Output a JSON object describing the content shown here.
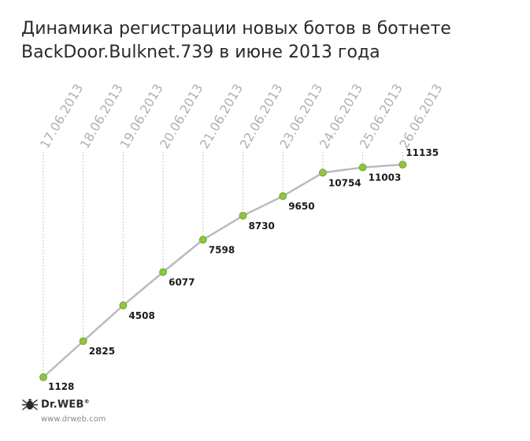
{
  "title_lines": [
    "Динамика регистрации новых ботов в ботнете",
    "BackDoor.Bulknet.739 в июне 2013 года"
  ],
  "chart_data": {
    "type": "line",
    "title": "Динамика регистрации новых ботов в ботнете BackDoor.Bulknet.739 в июне 2013 года",
    "categories": [
      "17.06.2013",
      "18.06.2013",
      "19.06.2013",
      "20.06.2013",
      "21.06.2013",
      "22.06.2013",
      "23.06.2013",
      "24.06.2013",
      "25.06.2013",
      "26.06.2013"
    ],
    "series": [
      {
        "values": [
          1128,
          2825,
          4508,
          6077,
          7598,
          8730,
          9650,
          10754,
          11003,
          11135
        ]
      }
    ],
    "value_labels": [
      "1128",
      "2825",
      "4508",
      "6077",
      "7598",
      "8730",
      "9650",
      "10754",
      "11003",
      "11135"
    ],
    "ylim": [
      1128,
      11135
    ],
    "grid": "dotted vertical guides per date",
    "colors": {
      "line": "#bbbbbb",
      "point": "#8dc63f",
      "point_stroke": "#6a9a2a",
      "tick_label": "#b0b0b0",
      "value_label": "#1a1a1a"
    }
  },
  "brand": {
    "logo_icon": "spider-icon",
    "logo_text": "Dr.WEB",
    "registered": "®",
    "url": "www.drweb.com"
  }
}
